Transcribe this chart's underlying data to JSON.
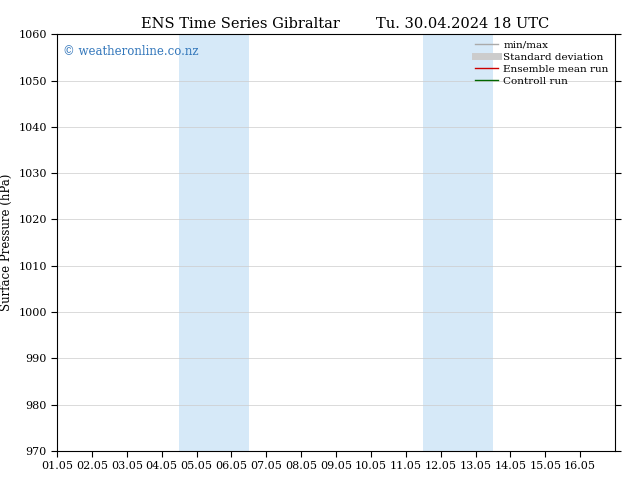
{
  "title_left": "ENS Time Series Gibraltar",
  "title_right": "Tu. 30.04.2024 18 UTC",
  "ylabel": "Surface Pressure (hPa)",
  "ylim": [
    970,
    1060
  ],
  "yticks": [
    970,
    980,
    990,
    1000,
    1010,
    1020,
    1030,
    1040,
    1050,
    1060
  ],
  "xlim": [
    0,
    16
  ],
  "xtick_labels": [
    "01.05",
    "02.05",
    "03.05",
    "04.05",
    "05.05",
    "06.05",
    "07.05",
    "08.05",
    "09.05",
    "10.05",
    "11.05",
    "12.05",
    "13.05",
    "14.05",
    "15.05",
    "16.05"
  ],
  "xtick_positions": [
    0,
    1,
    2,
    3,
    4,
    5,
    6,
    7,
    8,
    9,
    10,
    11,
    12,
    13,
    14,
    15
  ],
  "shaded_bands": [
    {
      "xmin": 3.5,
      "xmax": 5.5
    },
    {
      "xmin": 10.5,
      "xmax": 12.5
    }
  ],
  "shade_color": "#d6e9f8",
  "background_color": "#ffffff",
  "legend_items": [
    {
      "label": "min/max",
      "color": "#aaaaaa",
      "lw": 1.0,
      "style": "-"
    },
    {
      "label": "Standard deviation",
      "color": "#cccccc",
      "lw": 5,
      "style": "-"
    },
    {
      "label": "Ensemble mean run",
      "color": "#cc0000",
      "lw": 1.0,
      "style": "-"
    },
    {
      "label": "Controll run",
      "color": "#006600",
      "lw": 1.0,
      "style": "-"
    }
  ],
  "watermark": "© weatheronline.co.nz",
  "watermark_color": "#3377bb",
  "fig_width": 6.34,
  "fig_height": 4.9,
  "dpi": 100,
  "grid_color": "#cccccc",
  "title_fontsize": 10.5,
  "axis_label_fontsize": 8.5,
  "tick_fontsize": 8,
  "watermark_fontsize": 8.5,
  "legend_fontsize": 7.5
}
